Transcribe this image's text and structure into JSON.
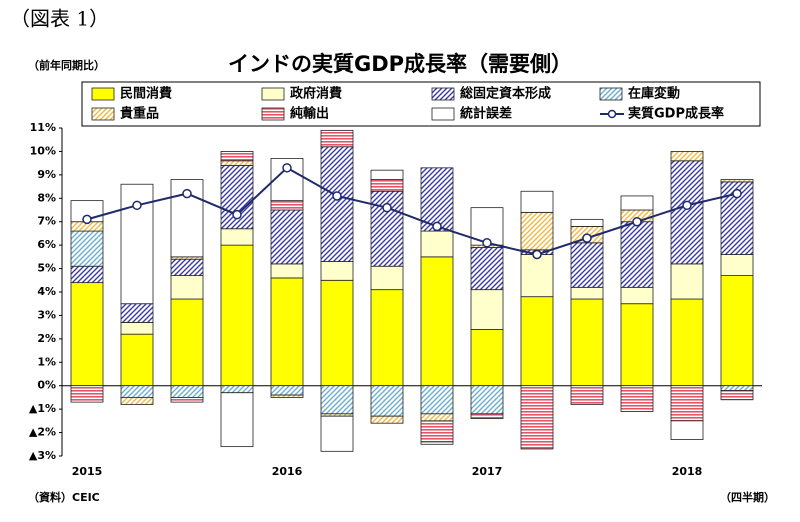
{
  "chart_data": {
    "type": "bar",
    "label": "（図表 1）",
    "title": "インドの実質GDP成長率（需要側）",
    "ylabel": "（前年同期比）",
    "source": "（資料）CEIC",
    "xlabel": "（四半期）",
    "categories": [
      "2015",
      null,
      null,
      null,
      "2016",
      null,
      null,
      null,
      "2017",
      null,
      null,
      null,
      "2018",
      null
    ],
    "ylim": [
      -3,
      11
    ],
    "yticks": [
      {
        "value": 11,
        "label": "11%"
      },
      {
        "value": 10,
        "label": "10%"
      },
      {
        "value": 9,
        "label": "9%"
      },
      {
        "value": 8,
        "label": "8%"
      },
      {
        "value": 7,
        "label": "7%"
      },
      {
        "value": 6,
        "label": "6%"
      },
      {
        "value": 5,
        "label": "5%"
      },
      {
        "value": 4,
        "label": "4%"
      },
      {
        "value": 3,
        "label": "3%"
      },
      {
        "value": 2,
        "label": "2%"
      },
      {
        "value": 1,
        "label": "1%"
      },
      {
        "value": 0,
        "label": "0%"
      },
      {
        "value": -1,
        "label": "▲1%"
      },
      {
        "value": -2,
        "label": "▲2%"
      },
      {
        "value": -3,
        "label": "▲3%"
      }
    ],
    "series": [
      {
        "name": "民間消費",
        "color": "#ffff00",
        "pattern": "solid",
        "values": [
          4.4,
          2.2,
          3.7,
          6.0,
          4.6,
          4.5,
          4.1,
          5.5,
          2.4,
          3.8,
          3.7,
          3.5,
          3.7,
          4.7
        ]
      },
      {
        "name": "政府消費",
        "color": "#ffffcc",
        "pattern": "solid",
        "values": [
          0,
          0.5,
          1.0,
          0.7,
          0.6,
          0.8,
          1.0,
          1.1,
          1.7,
          1.8,
          0.5,
          0.7,
          1.5,
          0.9
        ]
      },
      {
        "name": "総固定資本形成",
        "color": "#3a3aa8",
        "pattern": "hatch",
        "values": [
          0.7,
          0.8,
          0.7,
          2.7,
          2.3,
          4.9,
          3.2,
          2.7,
          1.8,
          0.2,
          1.9,
          2.8,
          4.4,
          3.1
        ]
      },
      {
        "name": "在庫変動",
        "color": "#6aaed0",
        "pattern": "hatch",
        "values": [
          1.5,
          -0.5,
          -0.5,
          -0.3,
          -0.4,
          -1.2,
          -1.3,
          -1.2,
          -1.2,
          0,
          0,
          0,
          0,
          -0.2
        ]
      },
      {
        "name": "貴重品",
        "color": "#f0b840",
        "pattern": "hatch",
        "values": [
          0.4,
          -0.3,
          0.1,
          0.2,
          -0.1,
          -0.1,
          -0.3,
          -0.3,
          0.1,
          1.6,
          0.7,
          0.5,
          0.4,
          0.1
        ]
      },
      {
        "name": "純輸出",
        "color": "#e05868",
        "pattern": "stripes",
        "values": [
          -0.7,
          0,
          -0.2,
          0.4,
          0.4,
          0.7,
          0.5,
          -0.9,
          -0.2,
          -2.7,
          -0.8,
          -1.1,
          -1.5,
          -0.4
        ]
      },
      {
        "name": "統計誤差",
        "color": "#ffffff",
        "pattern": "solid",
        "values": [
          0.9,
          5.1,
          3.3,
          -2.3,
          1.8,
          -1.5,
          0.4,
          -0.1,
          1.6,
          0.9,
          0.3,
          0.6,
          -0.8,
          0
        ]
      },
      {
        "name": "実質GDP成長率",
        "color": "#1f2a6b",
        "type": "line",
        "values": [
          7.1,
          7.7,
          8.2,
          7.3,
          9.3,
          8.1,
          7.6,
          6.8,
          6.1,
          5.6,
          6.3,
          7.0,
          7.7,
          8.2
        ]
      }
    ]
  }
}
